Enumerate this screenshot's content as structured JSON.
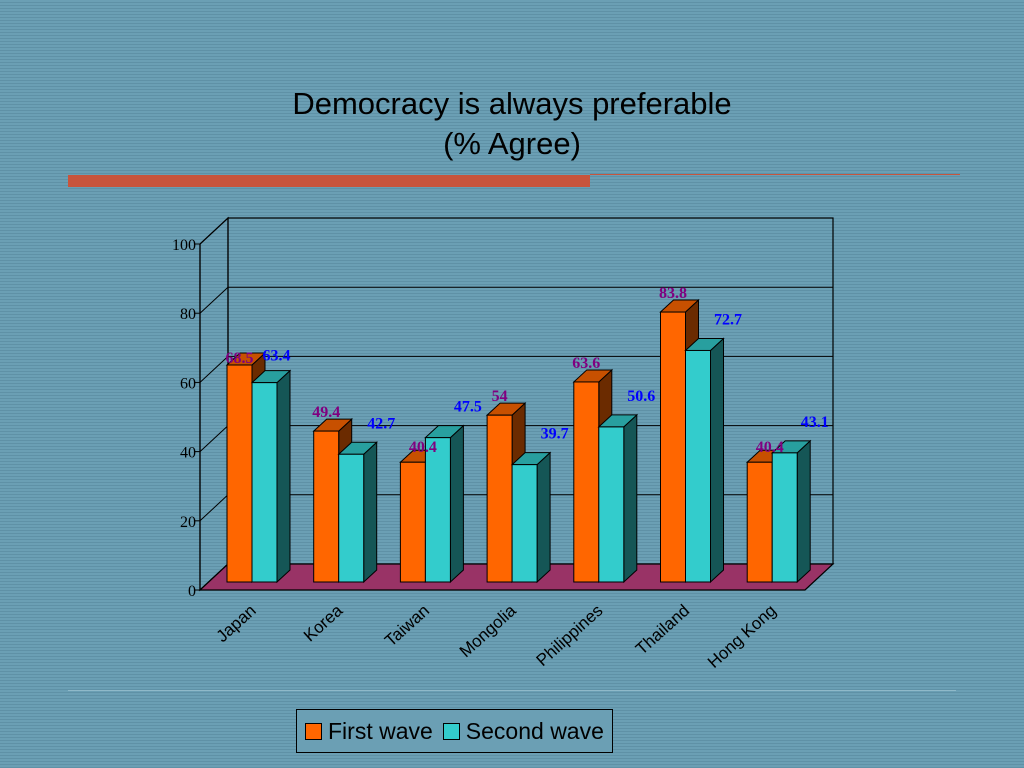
{
  "chart_data": {
    "type": "bar",
    "title": "Democracy is always preferable",
    "subtitle": "(% Agree)",
    "categories": [
      "Japan",
      "Korea",
      "Taiwan",
      "Mongolia",
      "Philippines",
      "Thailand",
      "Hong Kong"
    ],
    "series": [
      {
        "name": "First wave",
        "values": [
          68.5,
          49.4,
          40.4,
          54,
          63.6,
          83.8,
          40.4
        ],
        "color": "#ff6600",
        "label_color": "#800080"
      },
      {
        "name": "Second wave",
        "values": [
          63.4,
          42.7,
          47.5,
          39.7,
          50.6,
          72.7,
          43.1
        ],
        "color": "#33cccc",
        "label_color": "#0000ff"
      }
    ],
    "ylim": [
      0,
      100
    ],
    "yticks": [
      0,
      20,
      40,
      60,
      80,
      100
    ],
    "grid": true,
    "floor_color": "#993366",
    "legend_position": "bottom"
  }
}
